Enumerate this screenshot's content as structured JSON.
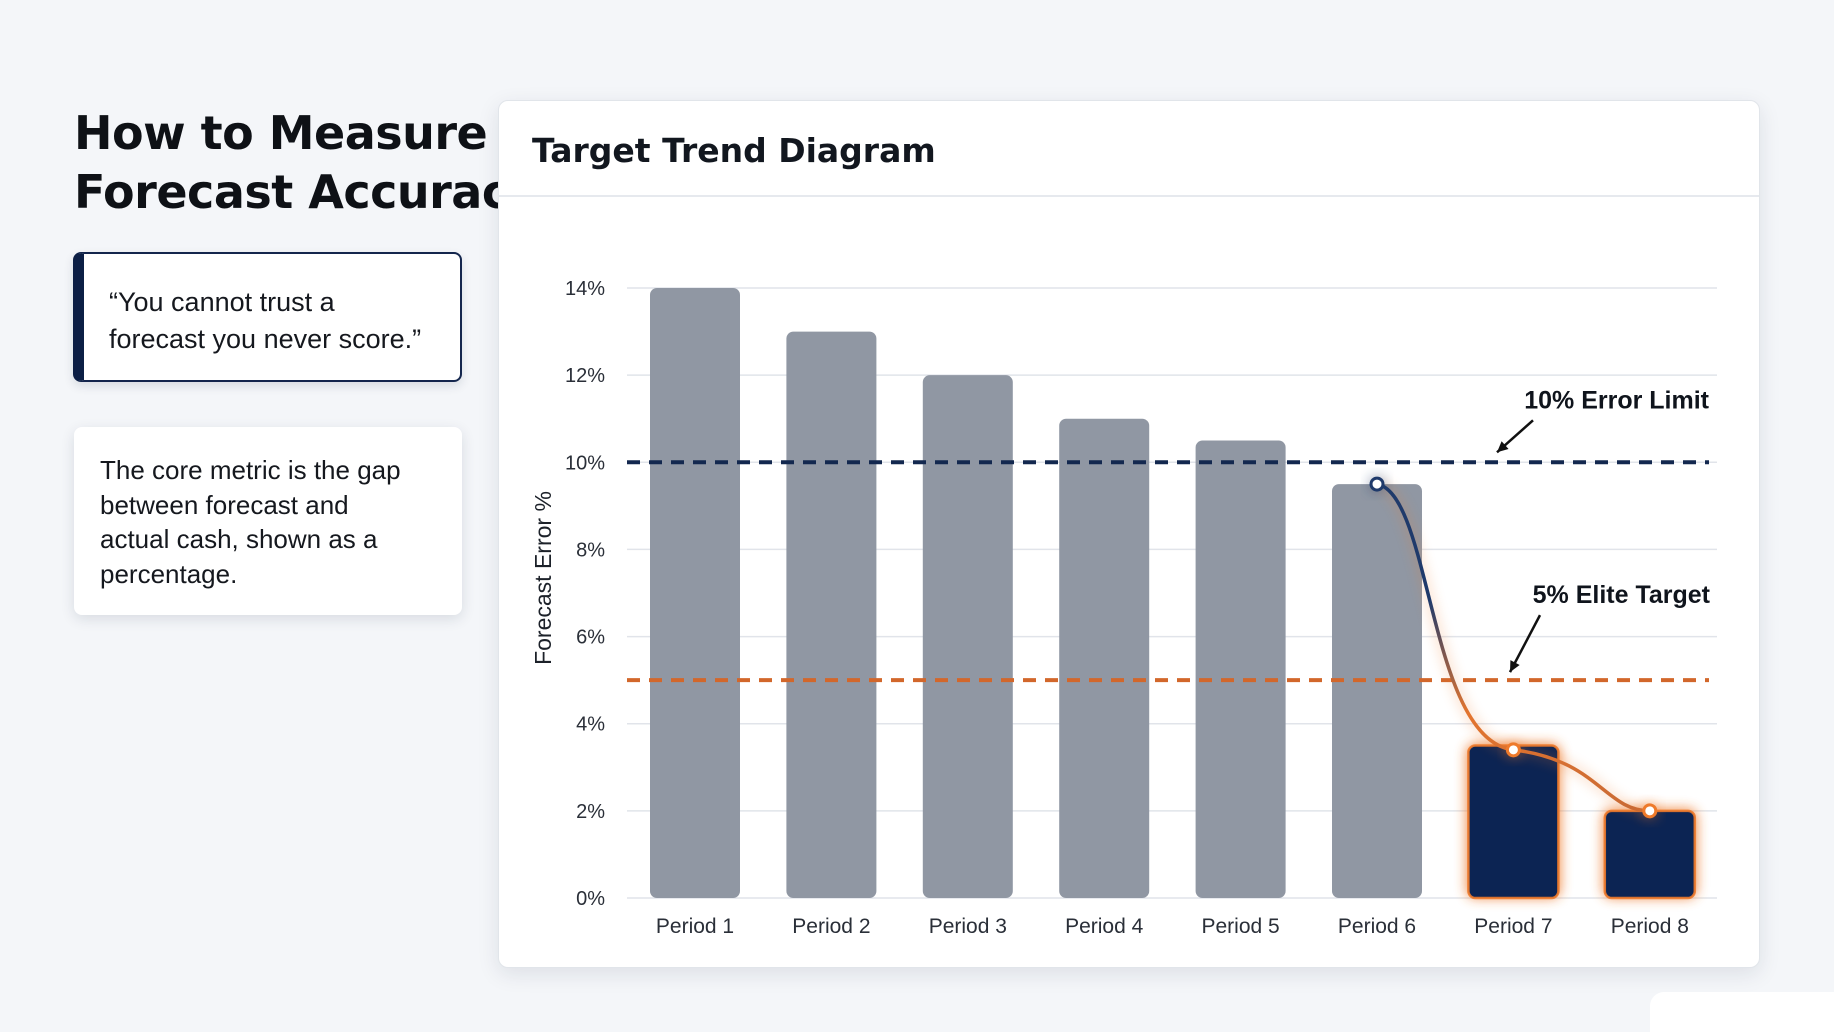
{
  "page": {
    "title_line1": "How to Measure",
    "title_line2": "Forecast Accuracy"
  },
  "quote_card": {
    "line1": "“You cannot trust a",
    "line2": "forecast you never score.”"
  },
  "info_card": {
    "line1": "The core metric is the gap",
    "line2": "between forecast and",
    "line3": "actual cash, shown as a",
    "line4": "percentage."
  },
  "colors": {
    "bar_default": "#9097a3",
    "bar_highlight": "#0c2453",
    "glow": "#ee7a2b",
    "error_limit_line": "#13284f",
    "elite_target_line": "#d2672b",
    "grid": "#e1e4ea",
    "axis_text": "#2a2f38"
  },
  "chart_data": {
    "type": "bar",
    "title": "Target Trend Diagram",
    "ylabel": "Forecast Error %",
    "xlabel": "",
    "ylim": [
      0,
      14
    ],
    "yticks": [
      0,
      2,
      4,
      6,
      8,
      10,
      12,
      14
    ],
    "ytick_labels": [
      "0%",
      "2%",
      "4%",
      "6%",
      "8%",
      "10%",
      "12%",
      "14%"
    ],
    "grid": true,
    "categories": [
      "Period 1",
      "Period 2",
      "Period 3",
      "Period 4",
      "Period 5",
      "Period 6",
      "Period 7",
      "Period 8"
    ],
    "values": [
      14,
      13,
      12,
      11,
      10.5,
      9.5,
      3.5,
      2
    ],
    "highlighted_categories": [
      "Period 7",
      "Period 8"
    ],
    "trend_line": {
      "categories": [
        "Period 6",
        "Period 7",
        "Period 8"
      ],
      "values": [
        9.5,
        3.4,
        2.0
      ]
    },
    "reference_lines": [
      {
        "label": "10% Error Limit",
        "value": 10,
        "style": "dashed",
        "color": "#13284f"
      },
      {
        "label": "5% Elite Target",
        "value": 5,
        "style": "dashed",
        "color": "#d2672b"
      }
    ]
  }
}
